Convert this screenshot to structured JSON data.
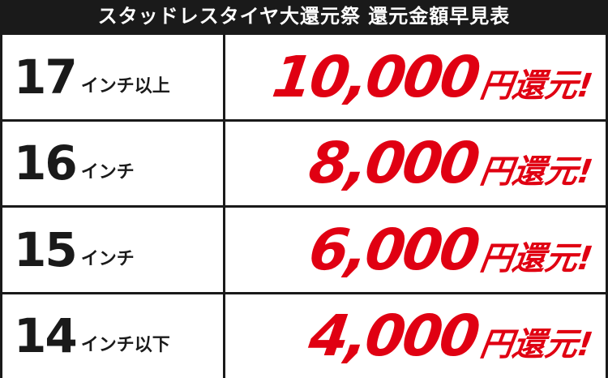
{
  "header": {
    "title": "スタッドレスタイヤ大還元祭 還元金額早見表"
  },
  "table": {
    "rows": [
      {
        "inch": "17",
        "label": "インチ以上",
        "amount": "10,000",
        "suffix": "円還元!"
      },
      {
        "inch": "16",
        "label": "インチ",
        "amount": "8,000",
        "suffix": "円還元!"
      },
      {
        "inch": "15",
        "label": "インチ",
        "amount": "6,000",
        "suffix": "円還元!"
      },
      {
        "inch": "14",
        "label": "インチ以下",
        "amount": "4,000",
        "suffix": "円還元!"
      }
    ]
  }
}
